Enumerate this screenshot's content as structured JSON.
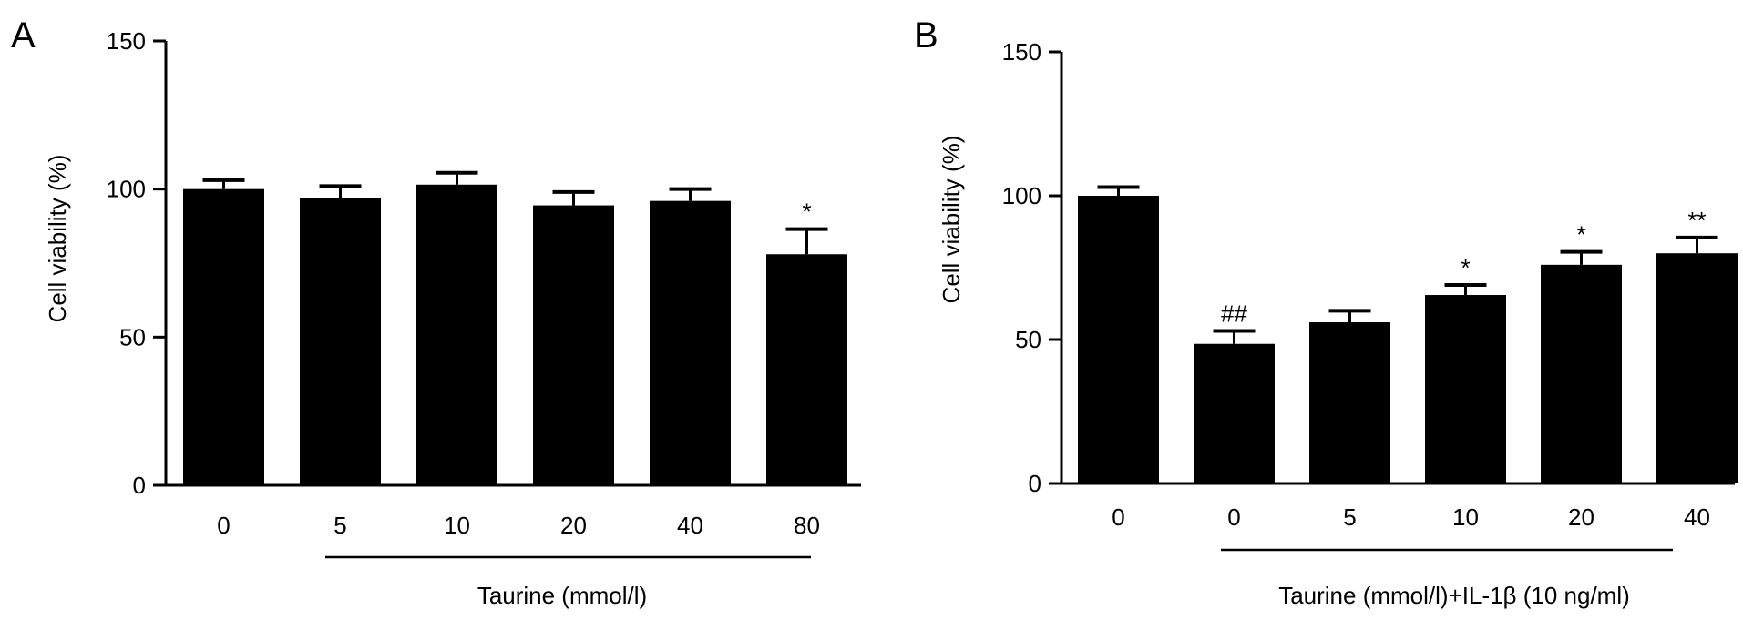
{
  "chart_data": [
    {
      "type": "bar",
      "panel": "A",
      "categories": [
        "0",
        "5",
        "10",
        "20",
        "40",
        "80"
      ],
      "values": [
        100,
        97,
        101.5,
        94.5,
        96,
        78
      ],
      "errors": [
        3,
        4,
        4,
        4.5,
        4,
        8.5
      ],
      "significance": [
        "",
        "",
        "",
        "",
        "",
        "*"
      ],
      "ylabel": "Cell viability (%)",
      "ylim": [
        0,
        150
      ],
      "yticks": [
        0,
        50,
        100,
        150
      ],
      "group_label": "Taurine (mmol/l)",
      "colors": {
        "bar": "#000000",
        "axis": "#000000"
      }
    },
    {
      "type": "bar",
      "panel": "B",
      "categories": [
        "0",
        "0",
        "5",
        "10",
        "20",
        "40"
      ],
      "values": [
        100,
        48.5,
        56,
        65.5,
        76,
        80
      ],
      "errors": [
        3,
        4.5,
        4,
        3.5,
        4.5,
        5.5
      ],
      "significance": [
        "",
        "##",
        "",
        "*",
        "*",
        "**"
      ],
      "ylabel": "Cell viability (%)",
      "ylim": [
        0,
        150
      ],
      "yticks": [
        0,
        50,
        100,
        150
      ],
      "group_label": "Taurine (mmol/l)+IL-1β (10 ng/ml)",
      "colors": {
        "bar": "#000000",
        "axis": "#000000"
      }
    }
  ]
}
